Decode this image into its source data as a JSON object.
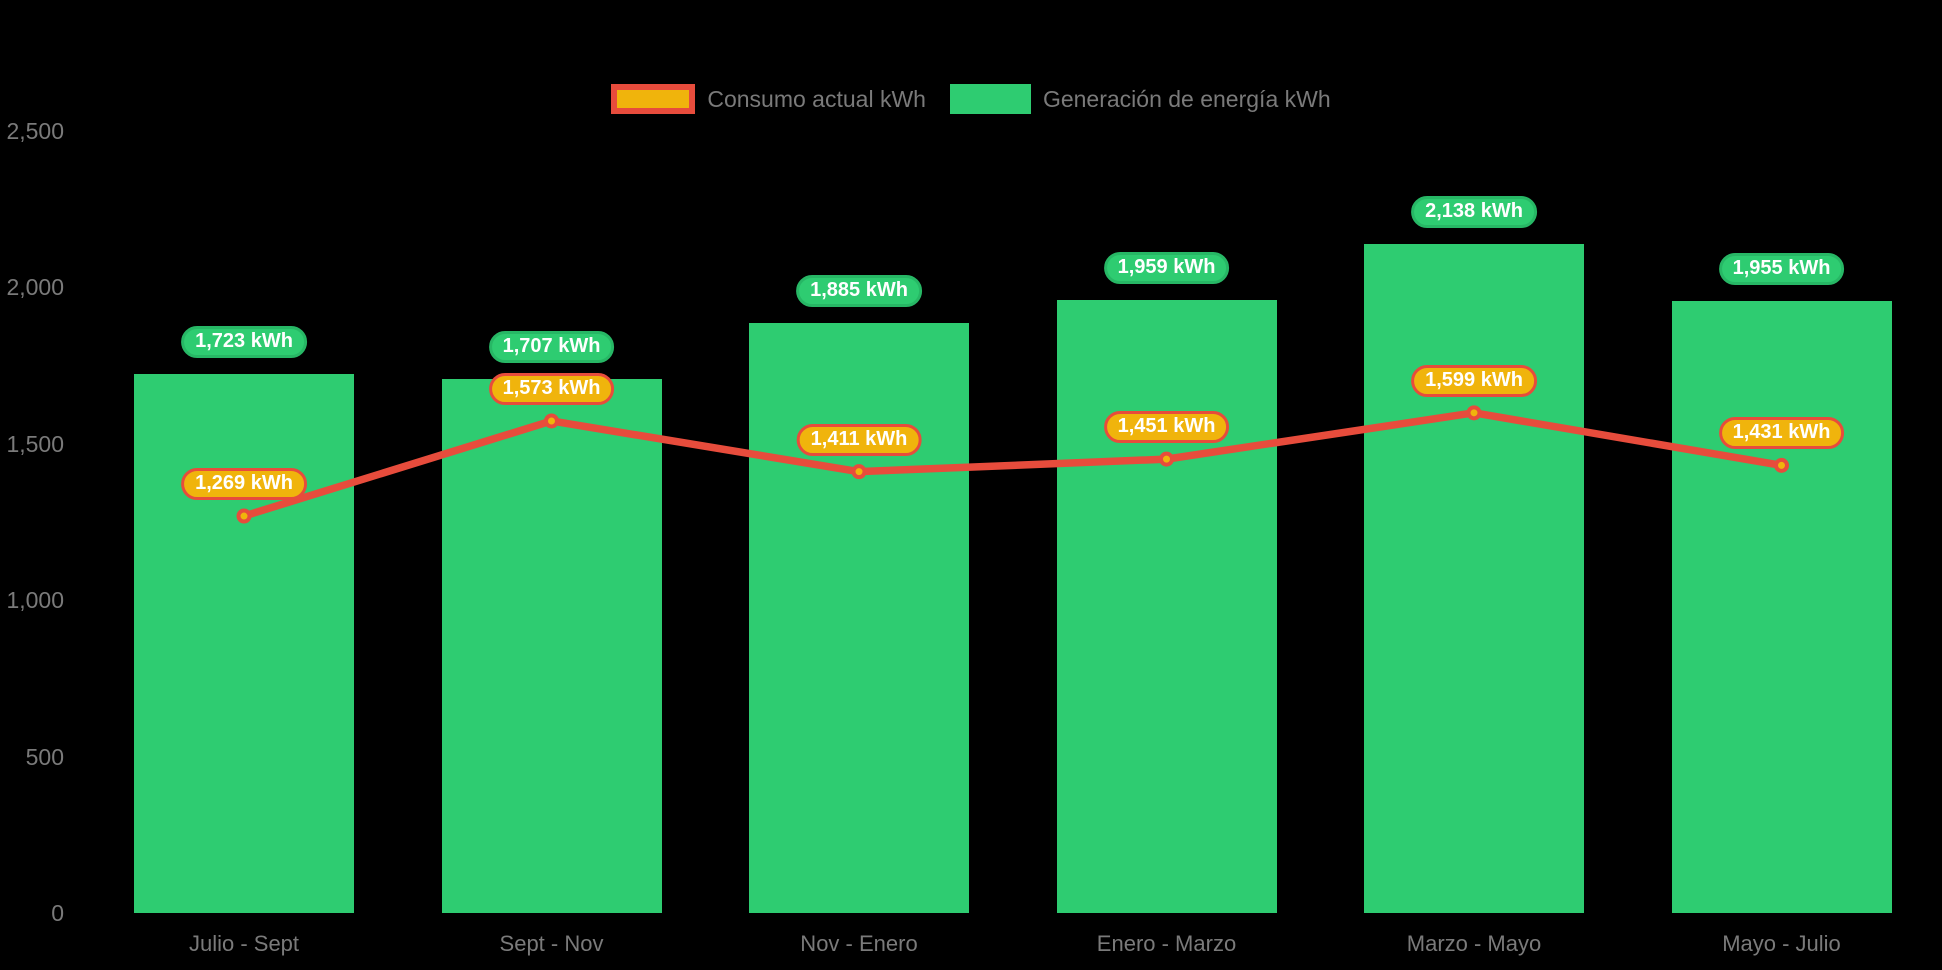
{
  "colors": {
    "background": "#000000",
    "bar_fill": "#2ecc71",
    "bar_badge_border": "#27b765",
    "line_stroke": "#e74c3c",
    "marker_fill": "#f0b40c",
    "consumo_badge_fill": "#f0b40c",
    "consumo_badge_border": "#e74c3c",
    "axis_text": "#7a7a7a",
    "badge_text": "#ffffff"
  },
  "legend": {
    "position": "top-center",
    "items": [
      {
        "id": "consumo",
        "label": "Consumo actual kWh"
      },
      {
        "id": "generacion",
        "label": "Generación de energía kWh"
      }
    ]
  },
  "chart_data": {
    "type": "bar+line",
    "categories": [
      "Julio - Sept",
      "Sept - Nov",
      "Nov - Enero",
      "Enero - Marzo",
      "Marzo - Mayo",
      "Mayo - Julio"
    ],
    "series": [
      {
        "name": "Consumo actual kWh",
        "type": "line",
        "color": "#e74c3c",
        "marker": "circle-gold-red-ring",
        "values": [
          1269,
          1573,
          1411,
          1451,
          1599,
          1431
        ],
        "labels": [
          "1,269 kWh",
          "1,573 kWh",
          "1,411 kWh",
          "1,451 kWh",
          "1,599 kWh",
          "1,431 kWh"
        ]
      },
      {
        "name": "Generación de energía kWh",
        "type": "bar",
        "color": "#2ecc71",
        "values": [
          1723,
          1707,
          1885,
          1959,
          2138,
          1955
        ],
        "labels": [
          "1,723 kWh",
          "1,707 kWh",
          "1,885 kWh",
          "1,959 kWh",
          "2,138 kWh",
          "1,955 kWh"
        ]
      }
    ],
    "y_axis": {
      "range": [
        0,
        2500
      ],
      "ticks": [
        {
          "value": 2500,
          "label": "2,500"
        },
        {
          "value": 2000,
          "label": "2,000"
        },
        {
          "value": 1500,
          "label": "1,500"
        },
        {
          "value": 1000,
          "label": "1,000"
        },
        {
          "value": 500,
          "label": "500"
        },
        {
          "value": 0,
          "label": "0"
        }
      ]
    },
    "grid": "none",
    "axis_lines": "none",
    "legend_position": "top-center"
  }
}
